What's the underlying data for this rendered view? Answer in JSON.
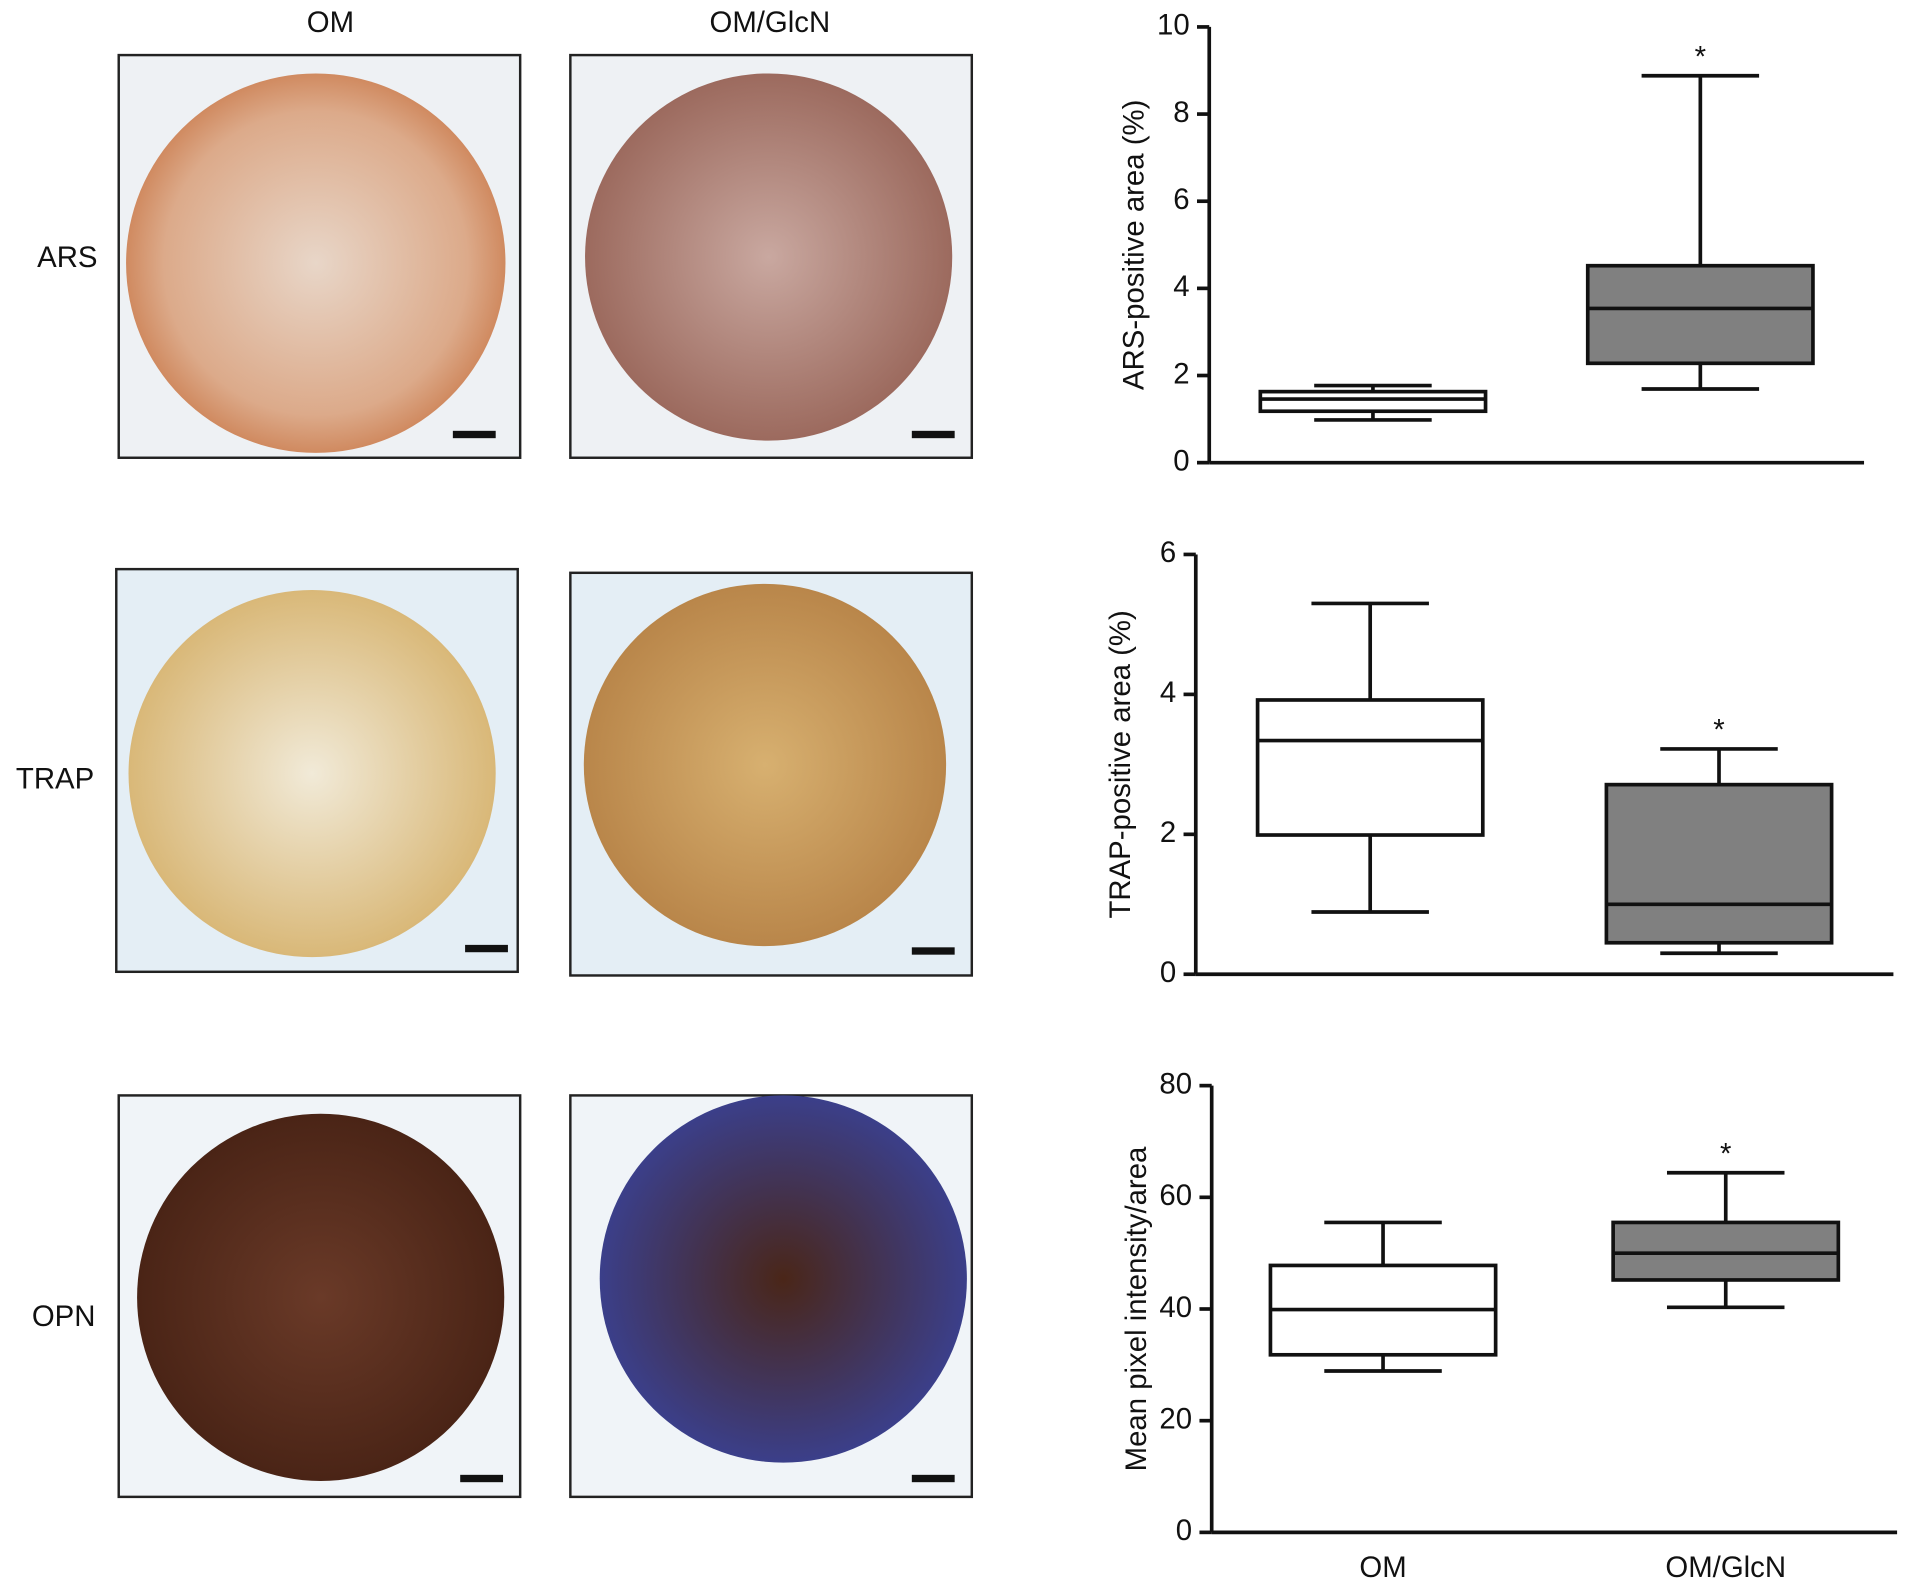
{
  "panels": {
    "columns": [
      "OM",
      "OM/GlcN"
    ],
    "rows": [
      "ARS",
      "TRAP",
      "OPN"
    ]
  },
  "chart_data": [
    {
      "type": "box",
      "ylabel": "ARS-positive area (%)",
      "categories": [
        null,
        null
      ],
      "values": [
        [
          0.98,
          1.18,
          1.46,
          1.63,
          1.77
        ],
        [
          1.69,
          2.28,
          3.54,
          4.52,
          8.88
        ]
      ],
      "colors": [
        "#ffffff",
        "#808080"
      ],
      "markers": [
        null,
        "*"
      ],
      "ylim": [
        0,
        10
      ],
      "yticks": [
        0,
        2,
        4,
        6,
        8,
        10
      ]
    },
    {
      "type": "box",
      "ylabel": "TRAP-positive area (%)",
      "categories": [
        null,
        null
      ],
      "values": [
        [
          0.89,
          1.99,
          3.34,
          3.92,
          5.3
        ],
        [
          0.3,
          0.45,
          1.0,
          2.71,
          3.22
        ]
      ],
      "colors": [
        "#ffffff",
        "#808080"
      ],
      "markers": [
        null,
        "*"
      ],
      "ylim": [
        0,
        6
      ],
      "yticks": [
        0,
        2,
        4,
        6
      ]
    },
    {
      "type": "box",
      "ylabel": "Mean pixel intensity/area",
      "categories": [
        "OM",
        "OM/GlcN"
      ],
      "values": [
        [
          28.9,
          31.8,
          39.9,
          47.8,
          55.5
        ],
        [
          40.3,
          45.2,
          50.0,
          55.5,
          64.4
        ]
      ],
      "colors": [
        "#ffffff",
        "#808080"
      ],
      "markers": [
        null,
        "*"
      ],
      "ylim": [
        0,
        80
      ],
      "yticks": [
        0,
        20,
        40,
        60,
        80
      ]
    }
  ]
}
